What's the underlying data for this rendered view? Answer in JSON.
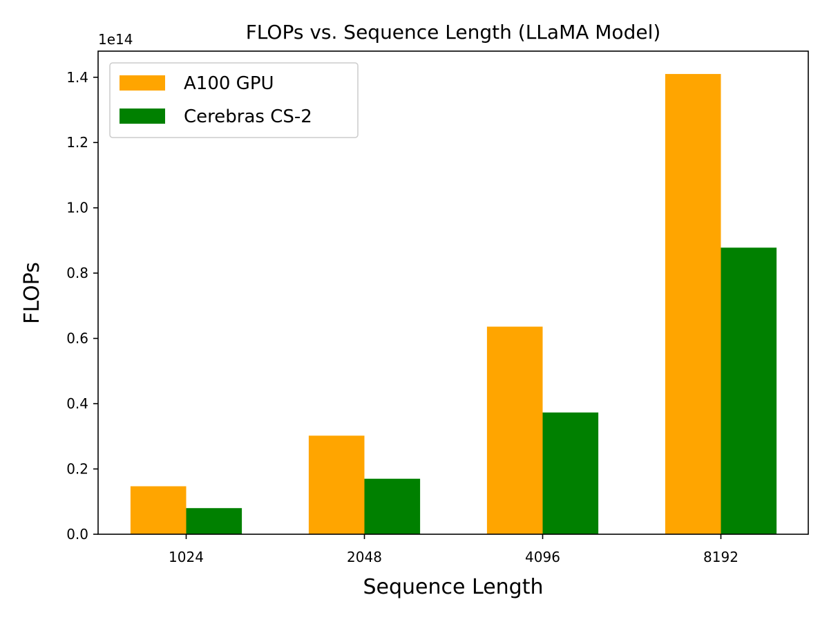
{
  "chart_data": {
    "type": "bar",
    "title": "FLOPs vs. Sequence Length (LLaMA Model)",
    "xlabel": "Sequence Length",
    "ylabel": "FLOPs",
    "y_offset_label": "1e14",
    "categories": [
      "1024",
      "2048",
      "4096",
      "8192"
    ],
    "series": [
      {
        "name": "A100 GPU",
        "color": "#ffa500",
        "values": [
          14700000000000.0,
          30200000000000.0,
          63600000000000.0,
          141000000000000.0
        ]
      },
      {
        "name": "Cerebras CS-2",
        "color": "#008000",
        "values": [
          8000000000000.0,
          17000000000000.0,
          37300000000000.0,
          87800000000000.0
        ]
      }
    ],
    "ylim": [
      0,
      148000000000000.0
    ],
    "yticks": [
      0.0,
      0.2,
      0.4,
      0.6,
      0.8,
      1.0,
      1.2,
      1.4
    ],
    "ytick_labels": [
      "0.0",
      "0.2",
      "0.4",
      "0.6",
      "0.8",
      "1.0",
      "1.2",
      "1.4"
    ],
    "ytick_scale": 100000000000000.0,
    "legend_position": "top-left",
    "grid": false
  }
}
